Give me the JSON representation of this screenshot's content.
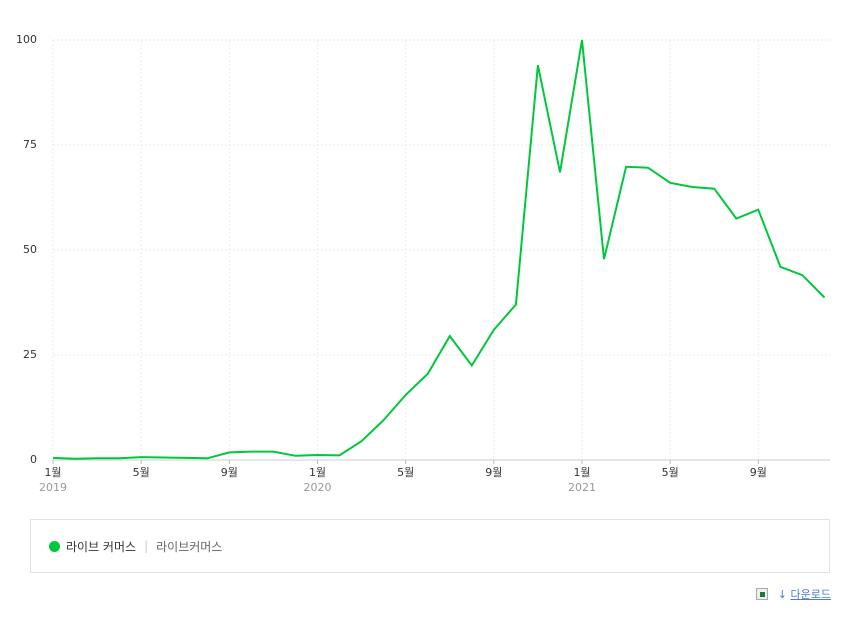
{
  "chart_data": {
    "type": "line",
    "categories": [
      "1월",
      null,
      null,
      null,
      "5월",
      null,
      null,
      null,
      "9월",
      null,
      null,
      null,
      "1월",
      null,
      null,
      null,
      "5월",
      null,
      null,
      null,
      "9월",
      null,
      null,
      null,
      "1월",
      null,
      null,
      null,
      "5월",
      null,
      null,
      null,
      "9월",
      null,
      null,
      null
    ],
    "category_years": [
      "2019",
      null,
      null,
      null,
      null,
      null,
      null,
      null,
      null,
      null,
      null,
      null,
      "2020",
      null,
      null,
      null,
      null,
      null,
      null,
      null,
      null,
      null,
      null,
      null,
      "2021",
      null,
      null,
      null,
      null,
      null,
      null,
      null,
      null,
      null,
      null,
      null
    ],
    "series": [
      {
        "name": "라이브 커머스",
        "keywords": "라이브커머스",
        "color": "#00c73c",
        "values": [
          0.5,
          0.3,
          0.4,
          0.4,
          0.7,
          0.6,
          0.5,
          0.4,
          1.8,
          2.0,
          2.0,
          1.0,
          1.2,
          1.1,
          4.5,
          9.5,
          15.5,
          20.5,
          29.5,
          22.5,
          31,
          37,
          94,
          68.5,
          100,
          47.8,
          69.8,
          69.6,
          66,
          65,
          64.6,
          57.5,
          59.6,
          46,
          44,
          38.7
        ]
      }
    ],
    "ylim": [
      0,
      100
    ],
    "yticks": [
      0,
      25,
      50,
      75,
      100
    ],
    "grid": true
  },
  "download": "다운로드"
}
